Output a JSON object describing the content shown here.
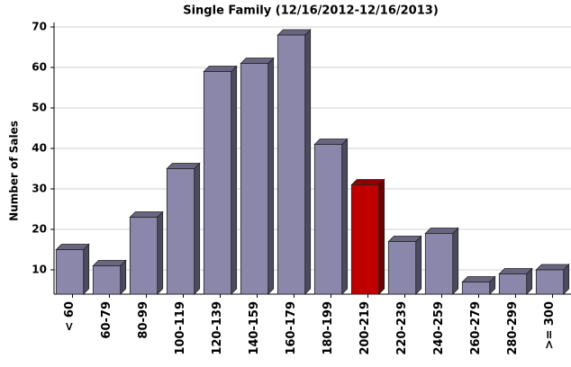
{
  "chart_data": {
    "type": "bar",
    "title": "Single Family (12/16/2012-12/16/2013)",
    "y_label": "Number of Sales",
    "categories": [
      "< 60",
      "60-79",
      "80-99",
      "100-119",
      "120-139",
      "140-159",
      "160-179",
      "180-199",
      "200-219",
      "220-239",
      "240-259",
      "260-279",
      "280-299",
      ">= 300"
    ],
    "values": [
      15,
      11,
      23,
      35,
      59,
      61,
      68,
      41,
      31,
      17,
      19,
      7,
      9,
      10
    ],
    "colors": [
      "#8a87ab",
      "#8a87ab",
      "#8a87ab",
      "#8a87ab",
      "#8a87ab",
      "#8a87ab",
      "#8a87ab",
      "#8a87ab",
      "#c00000",
      "#8a87ab",
      "#8a87ab",
      "#8a87ab",
      "#8a87ab",
      "#8a87ab"
    ],
    "ylim": [
      4,
      70
    ],
    "yticks": [
      10,
      20,
      30,
      40,
      50,
      60,
      70
    ],
    "grid": true
  }
}
